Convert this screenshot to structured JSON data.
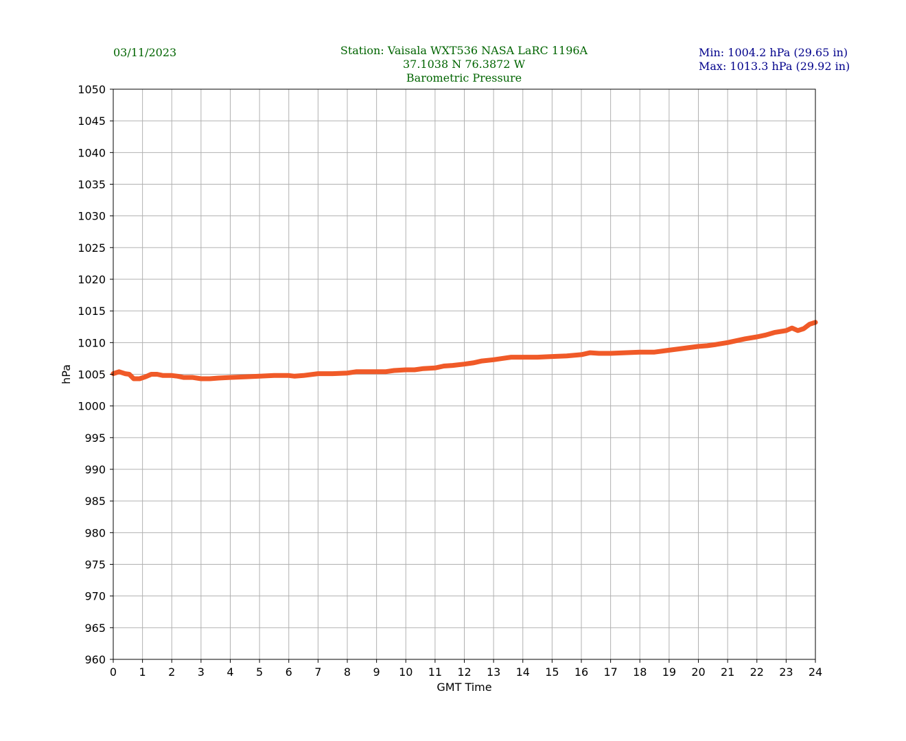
{
  "header": {
    "date": "03/11/2023",
    "station_line": "Station:  Vaisala WXT536  NASA LaRC 1196A",
    "coords_line": "37.1038 N 76.3872 W",
    "title": "Barometric Pressure",
    "min_line": "Min: 1004.2 hPa (29.65 in)",
    "max_line": "Max: 1013.3 hPa (29.92 in)"
  },
  "colors": {
    "header_text": "#006400",
    "stats_text": "#00008b",
    "series_line": "#f05a28",
    "grid": "#b0b0b0"
  },
  "chart_data": {
    "type": "line",
    "xlabel": "GMT Time",
    "ylabel": "hPa",
    "xlim": [
      0,
      24
    ],
    "ylim": [
      960,
      1050
    ],
    "xticks": [
      0,
      1,
      2,
      3,
      4,
      5,
      6,
      7,
      8,
      9,
      10,
      11,
      12,
      13,
      14,
      15,
      16,
      17,
      18,
      19,
      20,
      21,
      22,
      23,
      24
    ],
    "yticks": [
      960,
      965,
      970,
      975,
      980,
      985,
      990,
      995,
      1000,
      1005,
      1010,
      1015,
      1020,
      1025,
      1030,
      1035,
      1040,
      1045,
      1050
    ],
    "grid": true,
    "series": [
      {
        "x": [
          0,
          0.2,
          0.4,
          0.55,
          0.7,
          0.9,
          1.1,
          1.3,
          1.5,
          1.7,
          2.0,
          2.2,
          2.4,
          2.7,
          3.0,
          3.3,
          3.6,
          4.0,
          4.5,
          5.0,
          5.5,
          6.0,
          6.2,
          6.5,
          7.0,
          7.5,
          8.0,
          8.3,
          8.6,
          9.0,
          9.3,
          9.6,
          10.0,
          10.3,
          10.6,
          11.0,
          11.3,
          11.6,
          12.0,
          12.3,
          12.6,
          13.0,
          13.3,
          13.6,
          14.0,
          14.5,
          15.0,
          15.5,
          16.0,
          16.3,
          16.6,
          17.0,
          17.5,
          18.0,
          18.5,
          19.0,
          19.5,
          20.0,
          20.3,
          20.6,
          21.0,
          21.3,
          21.6,
          22.0,
          22.3,
          22.6,
          23.0,
          23.2,
          23.4,
          23.6,
          23.8,
          24.0
        ],
        "y": [
          1005.1,
          1005.4,
          1005.1,
          1005.0,
          1004.3,
          1004.3,
          1004.6,
          1005.0,
          1005.0,
          1004.8,
          1004.8,
          1004.7,
          1004.5,
          1004.5,
          1004.3,
          1004.3,
          1004.4,
          1004.5,
          1004.6,
          1004.7,
          1004.8,
          1004.8,
          1004.7,
          1004.8,
          1005.1,
          1005.1,
          1005.2,
          1005.4,
          1005.4,
          1005.4,
          1005.4,
          1005.6,
          1005.7,
          1005.7,
          1005.9,
          1006.0,
          1006.3,
          1006.4,
          1006.6,
          1006.8,
          1007.1,
          1007.3,
          1007.5,
          1007.7,
          1007.7,
          1007.7,
          1007.8,
          1007.9,
          1008.1,
          1008.4,
          1008.3,
          1008.3,
          1008.4,
          1008.5,
          1008.5,
          1008.8,
          1009.1,
          1009.4,
          1009.5,
          1009.7,
          1010.0,
          1010.3,
          1010.6,
          1010.9,
          1011.2,
          1011.6,
          1011.9,
          1012.3,
          1011.9,
          1012.2,
          1012.9,
          1013.2
        ]
      }
    ]
  }
}
